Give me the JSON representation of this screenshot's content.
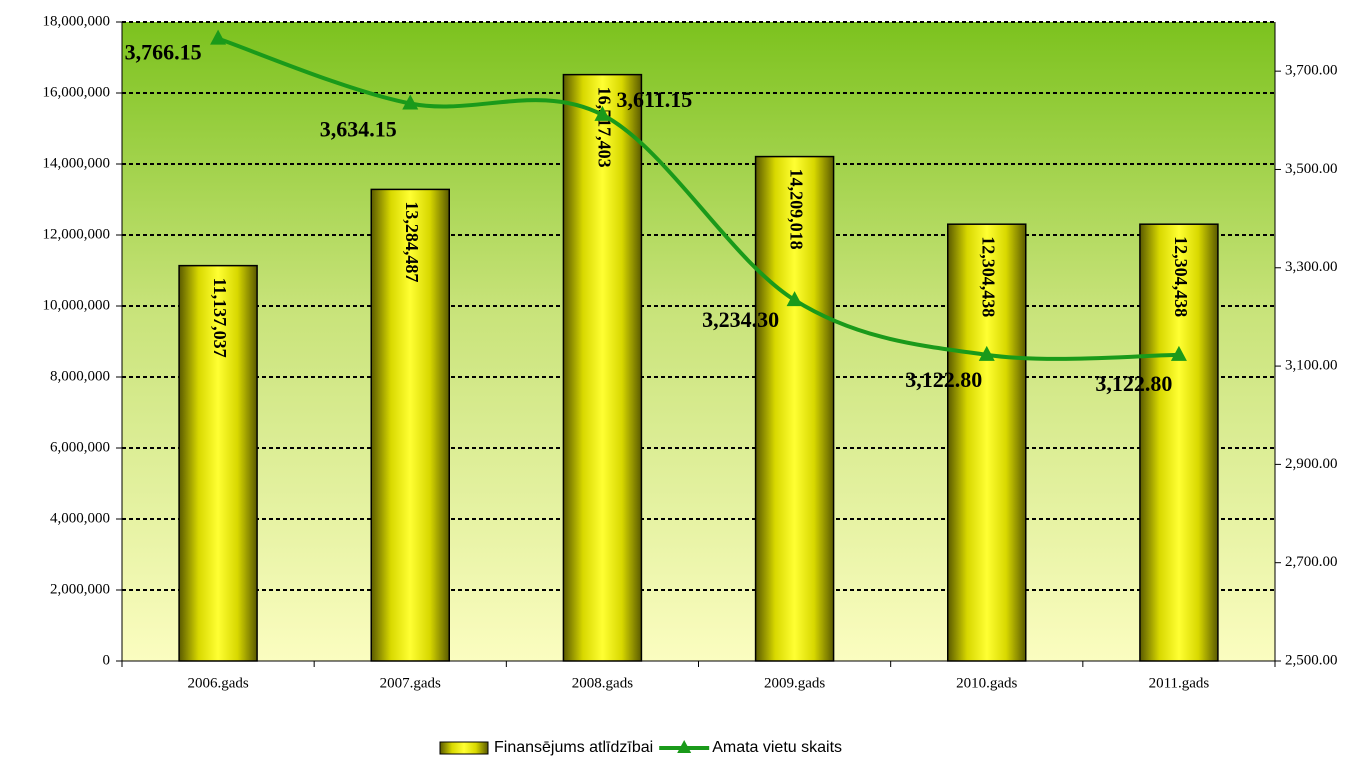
{
  "chart_data": {
    "type": "bar",
    "categories": [
      "2006.gads",
      "2007.gads",
      "2008.gads",
      "2009.gads",
      "2010.gads",
      "2011.gads"
    ],
    "series": [
      {
        "name": "Finansējums atlīdzībai",
        "type": "bar",
        "color": "#ffff00",
        "values": [
          11137037,
          13284487,
          16517403,
          14209018,
          12304438,
          12304438
        ],
        "value_labels": [
          "11,137,037",
          "13,284,487",
          "16,517,403",
          "14,209,018",
          "12,304,438",
          "12,304,438"
        ]
      },
      {
        "name": "Amata vietu skaits",
        "type": "line",
        "axis": "y2",
        "color": "#1a9a1a",
        "values": [
          3766.15,
          3634.15,
          3611.15,
          3234.3,
          3122.8,
          3122.8
        ],
        "value_labels": [
          "3,766.15",
          "3,634.15",
          "3,611.15",
          "3,234.30",
          "3,122.80",
          "3,122.80"
        ]
      }
    ],
    "ylim": [
      0,
      18000000
    ],
    "yticks": [
      0,
      {
        "value": 2000000,
        "label": "2,000,000"
      },
      {
        "value": 4000000,
        "label": "4,000,000"
      },
      {
        "value": 6000000,
        "label": "6,000,000"
      },
      {
        "value": 8000000,
        "label": "8,000,000"
      },
      {
        "value": 10000000,
        "label": "10,000,000"
      },
      {
        "value": 12000000,
        "label": "12,000,000"
      },
      {
        "value": 14000000,
        "label": "14,000,000"
      },
      {
        "value": 16000000,
        "label": "16,000,000"
      },
      {
        "value": 18000000,
        "label": "18,000,000"
      }
    ],
    "y2lim": [
      2500,
      3800
    ],
    "y2ticks": [
      {
        "value": 2500,
        "label": "2,500.00"
      },
      {
        "value": 2700,
        "label": "2,700.00"
      },
      {
        "value": 2900,
        "label": "2,900.00"
      },
      {
        "value": 3100,
        "label": "3,100.00"
      },
      {
        "value": 3300,
        "label": "3,300.00"
      },
      {
        "value": 3500,
        "label": "3,500.00"
      },
      {
        "value": 3700,
        "label": "3,700.00"
      }
    ],
    "grid": true,
    "legend": "bottom"
  }
}
